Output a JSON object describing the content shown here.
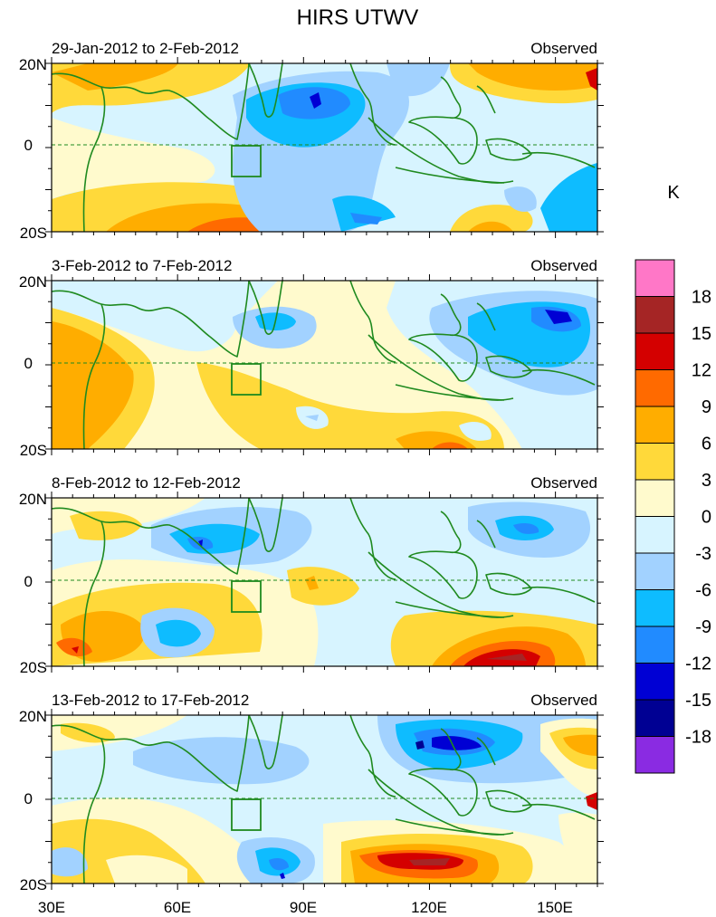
{
  "title": "HIRS UTWV",
  "colorbar": {
    "unit": "K",
    "levels": [
      "18",
      "15",
      "12",
      "9",
      "6",
      "3",
      "0",
      "-3",
      "-6",
      "-9",
      "-12",
      "-15",
      "-18"
    ],
    "colors": [
      "#ff77c7",
      "#a52525",
      "#d40000",
      "#ff6a00",
      "#ffad00",
      "#ffd93a",
      "#fffacd",
      "#d7f4ff",
      "#a2d2ff",
      "#0ebcff",
      "#218bff",
      "#0000d4",
      "#000093",
      "#8a2be2"
    ]
  },
  "axes": {
    "x_ticks": [
      "30E",
      "60E",
      "90E",
      "120E",
      "150E"
    ],
    "y_ticks": [
      "20N",
      "0",
      "20S"
    ]
  },
  "panels": [
    {
      "period": "29-Jan-2012 to 2-Feb-2012",
      "label": "Observed"
    },
    {
      "period": "3-Feb-2012 to 7-Feb-2012",
      "label": "Observed"
    },
    {
      "period": "8-Feb-2012 to 12-Feb-2012",
      "label": "Observed"
    },
    {
      "period": "13-Feb-2012 to 17-Feb-2012",
      "label": "Observed"
    }
  ],
  "colors": {
    "coastline": "#1f8a1f",
    "equator": "#1f8a1f",
    "box": "#1f8a1f"
  }
}
